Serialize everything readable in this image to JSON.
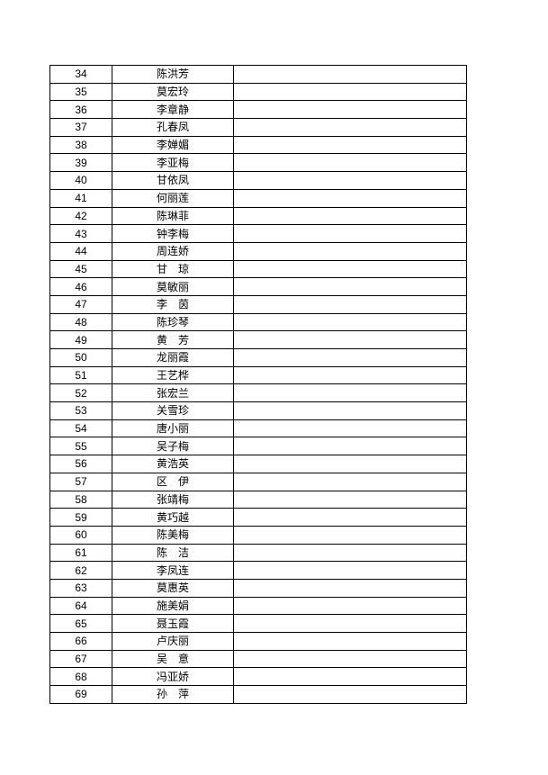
{
  "rows": [
    {
      "no": "34",
      "name": "陈洪芳"
    },
    {
      "no": "35",
      "name": "莫宏玲"
    },
    {
      "no": "36",
      "name": "李章静"
    },
    {
      "no": "37",
      "name": "孔春凤"
    },
    {
      "no": "38",
      "name": "李婵媚"
    },
    {
      "no": "39",
      "name": "李亚梅"
    },
    {
      "no": "40",
      "name": "甘依凤"
    },
    {
      "no": "41",
      "name": "何丽莲"
    },
    {
      "no": "42",
      "name": "陈琳菲"
    },
    {
      "no": "43",
      "name": "钟李梅"
    },
    {
      "no": "44",
      "name": "周连娇"
    },
    {
      "no": "45",
      "name": "甘　琼"
    },
    {
      "no": "46",
      "name": "莫敏丽"
    },
    {
      "no": "47",
      "name": "李　茵"
    },
    {
      "no": "48",
      "name": "陈珍琴"
    },
    {
      "no": "49",
      "name": "黄　芳"
    },
    {
      "no": "50",
      "name": "龙丽霞"
    },
    {
      "no": "51",
      "name": "王艺桦"
    },
    {
      "no": "52",
      "name": "张宏兰"
    },
    {
      "no": "53",
      "name": "关雪珍"
    },
    {
      "no": "54",
      "name": "唐小丽"
    },
    {
      "no": "55",
      "name": "吴子梅"
    },
    {
      "no": "56",
      "name": "黄浩英"
    },
    {
      "no": "57",
      "name": "区　伊"
    },
    {
      "no": "58",
      "name": "张靖梅"
    },
    {
      "no": "59",
      "name": "黄巧越"
    },
    {
      "no": "60",
      "name": "陈美梅"
    },
    {
      "no": "61",
      "name": "陈　洁"
    },
    {
      "no": "62",
      "name": "李凤连"
    },
    {
      "no": "63",
      "name": "莫惠英"
    },
    {
      "no": "64",
      "name": "施美娟"
    },
    {
      "no": "65",
      "name": "聂玉霞"
    },
    {
      "no": "66",
      "name": "卢庆丽"
    },
    {
      "no": "67",
      "name": "吴　意"
    },
    {
      "no": "68",
      "name": "冯亚娇"
    },
    {
      "no": "69",
      "name": "孙　萍"
    }
  ]
}
